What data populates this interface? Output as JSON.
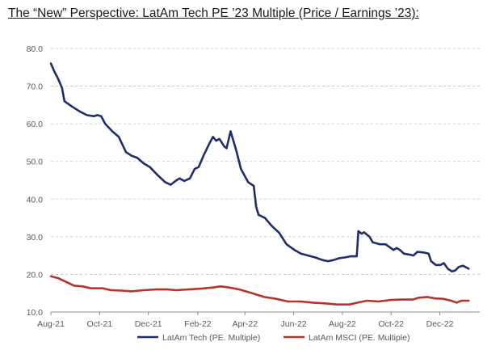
{
  "title": "The “New” Perspective: LatAm Tech PE ’23 Multiple (Price / Earnings ’23):",
  "colors": {
    "tech": "#1f2d6b",
    "msci": "#b5352b",
    "grid": "#bfbfbf",
    "axis": "#8c8c8c"
  },
  "chart_data": {
    "type": "line",
    "title": "The “New” Perspective: LatAm Tech PE ’23 Multiple (Price / Earnings ’23):",
    "xlabel": "",
    "ylabel": "",
    "ylim": [
      10,
      80
    ],
    "yticks": [
      "80.0",
      "70.0",
      "60.0",
      "50.0",
      "40.0",
      "30.0",
      "20.0",
      "10.0"
    ],
    "xlim": [
      "2021-08-01",
      "2023-01-20"
    ],
    "xticks": [
      {
        "label": "Aug-21",
        "date": "2021-08-01"
      },
      {
        "label": "Oct-21",
        "date": "2021-10-01"
      },
      {
        "label": "Dec-21",
        "date": "2021-12-01"
      },
      {
        "label": "Feb-22",
        "date": "2022-02-01"
      },
      {
        "label": "Apr-22",
        "date": "2022-04-01"
      },
      {
        "label": "Jun-22",
        "date": "2022-06-01"
      },
      {
        "label": "Aug-22",
        "date": "2022-08-01"
      },
      {
        "label": "Oct-22",
        "date": "2022-10-01"
      },
      {
        "label": "Dec-22",
        "date": "2022-12-01"
      }
    ],
    "grid": true,
    "legend": "bottom",
    "series": [
      {
        "name": "LatAm Tech (PE. Multiple)",
        "points": [
          [
            "2021-08-01",
            76.0
          ],
          [
            "2021-08-05",
            74.0
          ],
          [
            "2021-08-10",
            72.0
          ],
          [
            "2021-08-15",
            69.5
          ],
          [
            "2021-08-18",
            66.0
          ],
          [
            "2021-08-28",
            64.5
          ],
          [
            "2021-09-06",
            63.3
          ],
          [
            "2021-09-15",
            62.3
          ],
          [
            "2021-09-24",
            62.0
          ],
          [
            "2021-09-28",
            62.3
          ],
          [
            "2021-10-03",
            62.0
          ],
          [
            "2021-10-08",
            60.0
          ],
          [
            "2021-10-17",
            58.0
          ],
          [
            "2021-10-25",
            56.5
          ],
          [
            "2021-11-03",
            52.5
          ],
          [
            "2021-11-10",
            51.5
          ],
          [
            "2021-11-17",
            51.0
          ],
          [
            "2021-11-25",
            49.5
          ],
          [
            "2021-12-03",
            48.5
          ],
          [
            "2021-12-12",
            46.5
          ],
          [
            "2021-12-22",
            44.5
          ],
          [
            "2021-12-29",
            43.8
          ],
          [
            "2022-01-04",
            44.8
          ],
          [
            "2022-01-09",
            45.5
          ],
          [
            "2022-01-15",
            44.8
          ],
          [
            "2022-01-22",
            45.5
          ],
          [
            "2022-01-28",
            48.0
          ],
          [
            "2022-02-02",
            48.5
          ],
          [
            "2022-02-08",
            51.5
          ],
          [
            "2022-02-16",
            55.0
          ],
          [
            "2022-02-20",
            56.5
          ],
          [
            "2022-02-24",
            55.5
          ],
          [
            "2022-02-28",
            56.0
          ],
          [
            "2022-03-06",
            54.0
          ],
          [
            "2022-03-09",
            53.5
          ],
          [
            "2022-03-14",
            58.0
          ],
          [
            "2022-03-21",
            53.0
          ],
          [
            "2022-03-27",
            48.0
          ],
          [
            "2022-04-05",
            44.5
          ],
          [
            "2022-04-12",
            43.5
          ],
          [
            "2022-04-15",
            38.0
          ],
          [
            "2022-04-18",
            35.8
          ],
          [
            "2022-04-26",
            35.0
          ],
          [
            "2022-05-04",
            33.0
          ],
          [
            "2022-05-14",
            31.0
          ],
          [
            "2022-05-23",
            28.0
          ],
          [
            "2022-06-02",
            26.5
          ],
          [
            "2022-06-10",
            25.5
          ],
          [
            "2022-06-19",
            25.0
          ],
          [
            "2022-06-28",
            24.5
          ],
          [
            "2022-07-07",
            23.8
          ],
          [
            "2022-07-14",
            23.5
          ],
          [
            "2022-07-21",
            23.8
          ],
          [
            "2022-07-28",
            24.3
          ],
          [
            "2022-08-04",
            24.5
          ],
          [
            "2022-08-11",
            24.8
          ],
          [
            "2022-08-19",
            24.8
          ],
          [
            "2022-08-21",
            31.5
          ],
          [
            "2022-08-25",
            30.8
          ],
          [
            "2022-08-28",
            31.2
          ],
          [
            "2022-09-04",
            30.0
          ],
          [
            "2022-09-08",
            28.5
          ],
          [
            "2022-09-17",
            28.0
          ],
          [
            "2022-09-24",
            28.0
          ],
          [
            "2022-10-04",
            26.5
          ],
          [
            "2022-10-08",
            27.0
          ],
          [
            "2022-10-12",
            26.5
          ],
          [
            "2022-10-17",
            25.5
          ],
          [
            "2022-10-25",
            25.2
          ],
          [
            "2022-10-29",
            25.0
          ],
          [
            "2022-11-03",
            26.0
          ],
          [
            "2022-11-11",
            25.8
          ],
          [
            "2022-11-17",
            25.5
          ],
          [
            "2022-11-20",
            23.5
          ],
          [
            "2022-11-26",
            22.5
          ],
          [
            "2022-12-02",
            22.5
          ],
          [
            "2022-12-06",
            23.0
          ],
          [
            "2022-12-11",
            21.5
          ],
          [
            "2022-12-16",
            20.8
          ],
          [
            "2022-12-20",
            21.0
          ],
          [
            "2022-12-25",
            22.0
          ],
          [
            "2022-12-30",
            22.3
          ],
          [
            "2023-01-06",
            21.5
          ]
        ]
      },
      {
        "name": "LatAm MSCI (PE. Multiple)",
        "points": [
          [
            "2021-08-01",
            19.5
          ],
          [
            "2021-08-10",
            19.0
          ],
          [
            "2021-08-20",
            18.0
          ],
          [
            "2021-08-30",
            17.0
          ],
          [
            "2021-09-10",
            16.8
          ],
          [
            "2021-09-20",
            16.3
          ],
          [
            "2021-10-05",
            16.3
          ],
          [
            "2021-10-15",
            15.8
          ],
          [
            "2021-10-28",
            15.7
          ],
          [
            "2021-11-10",
            15.5
          ],
          [
            "2021-11-25",
            15.8
          ],
          [
            "2021-12-10",
            16.0
          ],
          [
            "2021-12-25",
            16.0
          ],
          [
            "2022-01-05",
            15.8
          ],
          [
            "2022-01-20",
            16.0
          ],
          [
            "2022-02-05",
            16.2
          ],
          [
            "2022-02-20",
            16.5
          ],
          [
            "2022-03-01",
            16.8
          ],
          [
            "2022-03-10",
            16.6
          ],
          [
            "2022-03-25",
            16.0
          ],
          [
            "2022-04-10",
            15.0
          ],
          [
            "2022-04-25",
            14.0
          ],
          [
            "2022-05-10",
            13.5
          ],
          [
            "2022-05-25",
            12.8
          ],
          [
            "2022-06-10",
            12.8
          ],
          [
            "2022-06-25",
            12.5
          ],
          [
            "2022-07-10",
            12.3
          ],
          [
            "2022-07-25",
            12.0
          ],
          [
            "2022-08-10",
            12.0
          ],
          [
            "2022-08-20",
            12.5
          ],
          [
            "2022-09-01",
            13.0
          ],
          [
            "2022-09-15",
            12.8
          ],
          [
            "2022-10-01",
            13.2
          ],
          [
            "2022-10-15",
            13.3
          ],
          [
            "2022-10-28",
            13.3
          ],
          [
            "2022-11-05",
            13.8
          ],
          [
            "2022-11-15",
            14.0
          ],
          [
            "2022-11-25",
            13.6
          ],
          [
            "2022-12-05",
            13.5
          ],
          [
            "2022-12-15",
            13.0
          ],
          [
            "2022-12-22",
            12.5
          ],
          [
            "2022-12-28",
            13.0
          ],
          [
            "2023-01-06",
            13.0
          ]
        ]
      }
    ]
  }
}
